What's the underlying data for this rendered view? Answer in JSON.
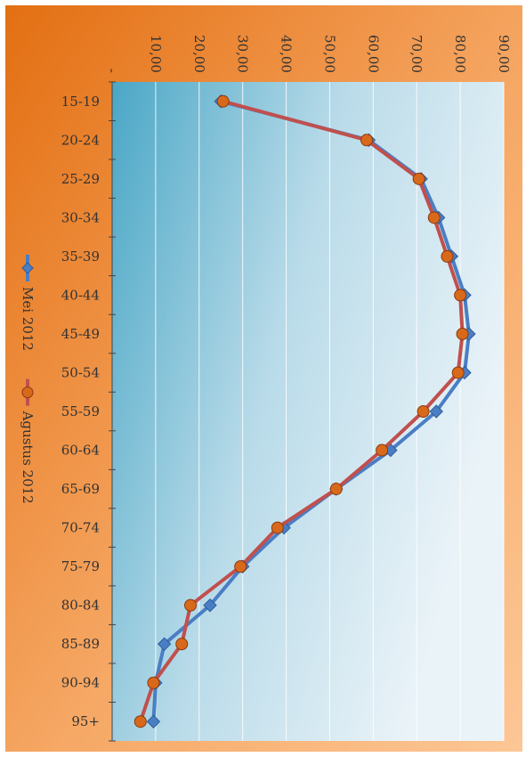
{
  "chart_data": {
    "type": "line",
    "orientation": "rotated-90",
    "title": "",
    "xlabel": "",
    "ylabel": "",
    "categories": [
      "15-19",
      "20-24",
      "25-29",
      "30-34",
      "35-39",
      "40-44",
      "45-49",
      "50-54",
      "55-59",
      "60-64",
      "65-69",
      "70-74",
      "75-79",
      "80-84",
      "85-89",
      "90-94",
      "95+"
    ],
    "value_axis": {
      "min": 0,
      "max": 90,
      "step": 10,
      "tick_labels": [
        "-",
        "10,00",
        "20,00",
        "30,00",
        "40,00",
        "50,00",
        "60,00",
        "70,00",
        "80,00",
        "90,00"
      ]
    },
    "series": [
      {
        "name": "Mei 2012",
        "color": "#4a7ec4",
        "marker": "diamond",
        "values": [
          25,
          59,
          71,
          75,
          78,
          81,
          82,
          81,
          74.5,
          64,
          51.5,
          39.5,
          30,
          22.5,
          12,
          10,
          9.5
        ]
      },
      {
        "name": "Agustus 2012",
        "color": "#c0504d",
        "marker": "circle",
        "marker_color": "#d9691a",
        "values": [
          25.5,
          58.5,
          70.5,
          74,
          77,
          80,
          80.5,
          79.5,
          71.5,
          62,
          51.5,
          38,
          29.5,
          18,
          16,
          9.5,
          6.5
        ]
      }
    ],
    "legend_position": "left",
    "grid": true,
    "colors": {
      "frame_orange": "#e97e27",
      "frame_light": "#fbc490",
      "plot_teal": "#4aa7c6",
      "plot_light": "#e6f1f7"
    }
  }
}
